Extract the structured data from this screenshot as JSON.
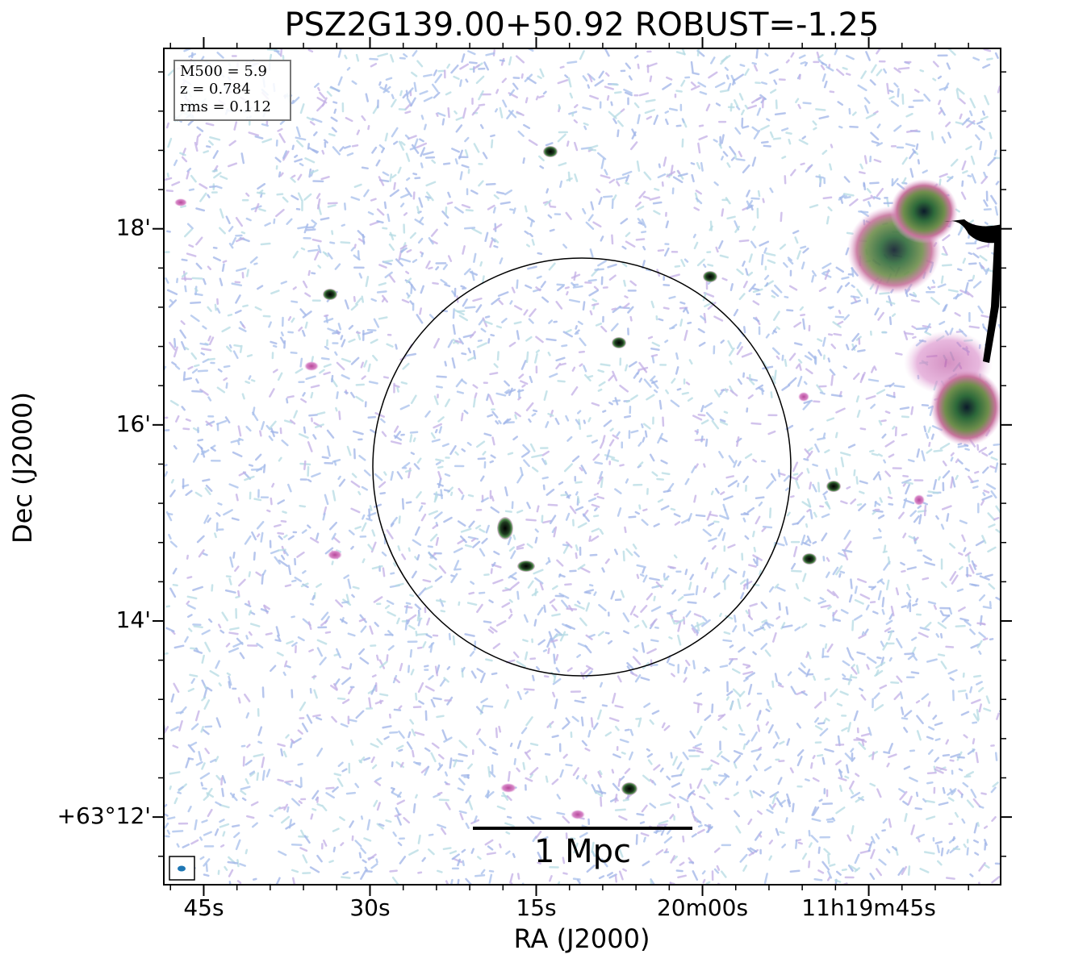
{
  "chart_data": {
    "type": "image",
    "title": "PSZ2G139.00+50.92 ROBUST=-1.25",
    "xlabel": "RA (J2000)",
    "ylabel": "Dec (J2000)",
    "xlim": [
      108.6,
      33.1
    ],
    "ylim": [
      11.31,
      19.84
    ],
    "xticks": [
      {
        "value": 105,
        "label": "45s"
      },
      {
        "value": 90,
        "label": "30s"
      },
      {
        "value": 75,
        "label": "15s"
      },
      {
        "value": 60,
        "label": "20m00s"
      },
      {
        "value": 45,
        "label": "11h19m45s"
      }
    ],
    "yticks": [
      {
        "value": 12,
        "label": "+63°12'"
      },
      {
        "value": 14,
        "label": "14'"
      },
      {
        "value": 16,
        "label": "16'"
      },
      {
        "value": 18,
        "label": "18'"
      }
    ],
    "info": [
      "M500 = 5.9",
      "z = 0.784",
      "rms = 0.112"
    ],
    "scalebar_label": "1 Mpc"
  }
}
